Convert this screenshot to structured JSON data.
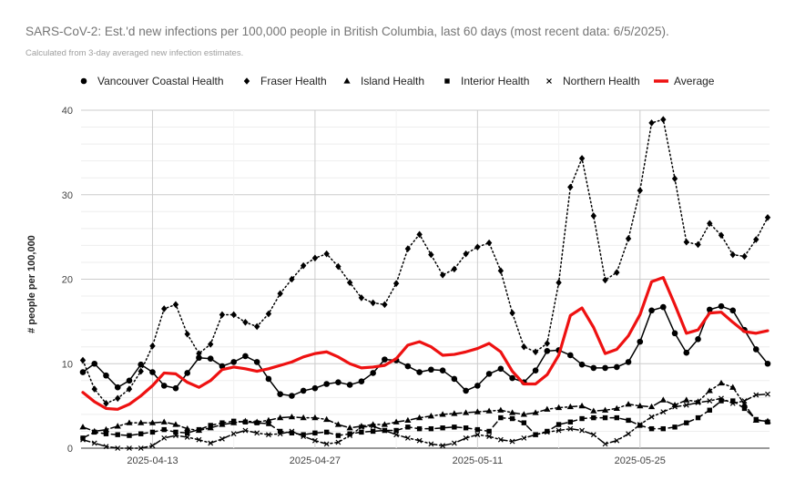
{
  "chart_data": {
    "type": "line",
    "title": "SARS-CoV-2: Est.'d new infections per 100,000 people in British Columbia, last 60 days (most recent data: 6/5/2025).",
    "subtitle": "Calculated from 3-day averaged new infection estimates.",
    "xlabel": "",
    "ylabel": "# people per 100,000",
    "x_start_date": "2025-04-07",
    "x_tick_labels": [
      "2025-04-13",
      "2025-04-27",
      "2025-05-11",
      "2025-05-25"
    ],
    "x_ticks": [
      "2025-04-13",
      "2025-04-27",
      "2025-05-11",
      "2025-05-25"
    ],
    "ylim": [
      0,
      40
    ],
    "y_ticks": [
      0,
      10,
      20,
      30,
      40
    ],
    "grid": true,
    "legend_position": "top",
    "series": [
      {
        "name": "Vancouver Coastal Health",
        "marker": "circle",
        "line": "solid",
        "color": "#000000",
        "values": [
          9.0,
          10.0,
          8.6,
          7.2,
          8.0,
          9.9,
          9.0,
          7.4,
          7.1,
          8.9,
          10.7,
          10.6,
          9.7,
          10.2,
          10.9,
          10.2,
          8.2,
          6.4,
          6.2,
          6.8,
          7.1,
          7.6,
          7.8,
          7.5,
          7.9,
          8.9,
          10.5,
          10.4,
          9.7,
          9.0,
          9.3,
          9.2,
          8.2,
          6.8,
          7.4,
          8.8,
          9.4,
          8.3,
          7.8,
          9.2,
          11.5,
          11.6,
          11.0,
          9.9,
          9.5,
          9.5,
          9.6,
          10.2,
          12.6,
          16.3,
          16.7,
          13.6,
          11.3,
          12.9,
          16.4,
          16.8,
          16.3,
          14.0,
          11.7,
          10.0
        ]
      },
      {
        "name": "Fraser Health",
        "marker": "diamond",
        "line": "dotted",
        "color": "#000000",
        "values": [
          10.4,
          7.0,
          5.3,
          5.9,
          7.0,
          9.1,
          12.1,
          16.5,
          17.0,
          13.5,
          11.2,
          12.3,
          15.8,
          15.8,
          14.9,
          14.4,
          15.9,
          18.3,
          20.0,
          21.6,
          22.5,
          23.0,
          21.5,
          19.6,
          17.8,
          17.2,
          17.0,
          19.5,
          23.6,
          25.3,
          22.9,
          20.5,
          21.2,
          23.0,
          23.8,
          24.3,
          21.0,
          16.0,
          12.0,
          11.4,
          12.4,
          19.6,
          30.9,
          34.3,
          27.5,
          19.9,
          20.8,
          24.8,
          30.5,
          38.5,
          38.9,
          31.9,
          24.4,
          24.1,
          26.6,
          25.2,
          22.9,
          22.7,
          24.7,
          27.3
        ]
      },
      {
        "name": "Island Health",
        "marker": "triangle",
        "line": "dashdot",
        "color": "#000000",
        "values": [
          2.5,
          2.0,
          2.2,
          2.6,
          3.0,
          3.0,
          3.0,
          3.1,
          2.8,
          2.3,
          2.1,
          2.4,
          2.8,
          3.0,
          3.2,
          3.1,
          3.3,
          3.6,
          3.7,
          3.6,
          3.6,
          3.4,
          2.8,
          2.4,
          2.6,
          2.8,
          2.8,
          3.1,
          3.3,
          3.6,
          3.8,
          4.0,
          4.1,
          4.2,
          4.3,
          4.4,
          4.5,
          4.2,
          4.0,
          4.2,
          4.6,
          4.8,
          4.9,
          5.0,
          4.4,
          4.5,
          4.7,
          5.2,
          5.0,
          4.9,
          5.7,
          5.1,
          5.7,
          5.5,
          6.8,
          7.7,
          7.2,
          5.2,
          3.3,
          3.2
        ]
      },
      {
        "name": "Interior Health",
        "marker": "square",
        "line": "dashed",
        "color": "#000000",
        "values": [
          1.2,
          1.9,
          1.7,
          1.6,
          1.5,
          1.7,
          1.9,
          2.2,
          1.9,
          1.8,
          2.2,
          2.7,
          3.0,
          3.2,
          3.1,
          3.0,
          2.9,
          2.0,
          1.8,
          1.6,
          1.8,
          1.9,
          1.5,
          1.7,
          1.9,
          2.0,
          2.1,
          2.1,
          2.5,
          2.3,
          2.3,
          2.4,
          2.5,
          2.4,
          2.2,
          2.0,
          3.6,
          3.5,
          3.0,
          1.6,
          2.0,
          2.8,
          3.1,
          3.5,
          3.6,
          3.6,
          3.6,
          3.3,
          2.7,
          2.3,
          2.3,
          2.5,
          3.0,
          3.6,
          4.5,
          5.6,
          5.6,
          4.7,
          3.4,
          3.1
        ]
      },
      {
        "name": "Northern Health",
        "marker": "x",
        "line": "dashdot",
        "color": "#000000",
        "values": [
          1.0,
          0.6,
          0.2,
          0.0,
          0.0,
          0.0,
          0.3,
          1.2,
          1.5,
          1.3,
          1.0,
          0.6,
          1.1,
          1.7,
          2.1,
          1.8,
          1.6,
          1.7,
          2.0,
          1.4,
          0.9,
          0.5,
          0.7,
          1.5,
          2.5,
          2.6,
          2.1,
          1.6,
          1.2,
          0.9,
          0.5,
          0.3,
          0.6,
          1.2,
          1.6,
          1.4,
          1.0,
          0.8,
          1.2,
          1.6,
          1.9,
          2.1,
          2.3,
          2.1,
          1.6,
          0.5,
          0.9,
          1.7,
          2.8,
          3.7,
          4.3,
          4.9,
          5.1,
          5.4,
          5.6,
          5.9,
          5.3,
          5.6,
          6.3,
          6.4
        ]
      },
      {
        "name": "Average",
        "marker": "none",
        "line": "solid-thick",
        "color": "#ee1111",
        "values": [
          6.6,
          5.5,
          4.7,
          4.6,
          5.2,
          6.2,
          7.4,
          8.9,
          8.8,
          7.8,
          7.2,
          8.0,
          9.3,
          9.6,
          9.4,
          9.1,
          9.4,
          9.8,
          10.2,
          10.8,
          11.2,
          11.4,
          10.8,
          10.0,
          9.5,
          9.6,
          9.8,
          10.6,
          12.2,
          12.6,
          12.0,
          11.0,
          11.1,
          11.4,
          11.8,
          12.4,
          11.4,
          9.1,
          7.6,
          7.6,
          8.7,
          11.0,
          15.7,
          16.6,
          14.3,
          11.2,
          11.7,
          13.3,
          15.8,
          19.7,
          20.2,
          17.0,
          13.6,
          14.0,
          16.0,
          16.1,
          14.9,
          13.8,
          13.6,
          13.9
        ]
      }
    ]
  }
}
